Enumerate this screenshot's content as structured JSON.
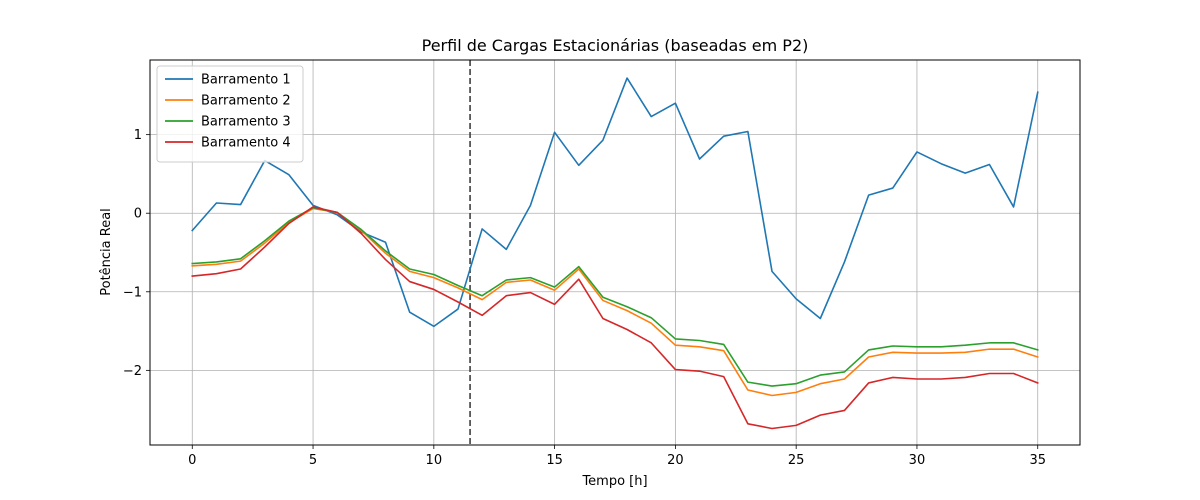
{
  "chart_data": {
    "type": "line",
    "title": "Perfil de Cargas Estacionárias (baseadas em P2)",
    "xlabel": "Tempo [h]",
    "ylabel": "Potência Real",
    "xlim": [
      -1.75,
      36.75
    ],
    "ylim": [
      -2.95,
      1.95
    ],
    "x_ticks": [
      0,
      5,
      10,
      15,
      20,
      25,
      30,
      35
    ],
    "y_ticks": [
      -2,
      -1,
      0,
      1
    ],
    "y_tick_labels": [
      "−2",
      "−1",
      "0",
      "1"
    ],
    "grid": true,
    "legend_position": "top-left",
    "vertical_line": {
      "x": 11.5,
      "style": "dashed",
      "color": "#404040"
    },
    "x": [
      0,
      1,
      2,
      3,
      4,
      5,
      6,
      7,
      8,
      9,
      10,
      11,
      12,
      13,
      14,
      15,
      16,
      17,
      18,
      19,
      20,
      21,
      22,
      23,
      24,
      25,
      26,
      27,
      28,
      29,
      30,
      31,
      32,
      33,
      34,
      35
    ],
    "series": [
      {
        "name": "Barramento 1",
        "color": "#1f77b4",
        "values": [
          -0.22,
          0.13,
          0.11,
          0.67,
          0.49,
          0.1,
          -0.02,
          -0.24,
          -0.37,
          -1.26,
          -1.44,
          -1.22,
          -0.2,
          -0.46,
          0.1,
          1.03,
          0.61,
          0.93,
          1.72,
          1.23,
          1.4,
          0.69,
          0.98,
          1.04,
          -0.74,
          -1.09,
          -1.34,
          -0.62,
          0.23,
          0.32,
          0.78,
          0.63,
          0.51,
          0.62,
          0.08,
          1.54
        ]
      },
      {
        "name": "Barramento 2",
        "color": "#ff7f0e",
        "values": [
          -0.67,
          -0.65,
          -0.61,
          -0.38,
          -0.12,
          0.06,
          0.01,
          -0.22,
          -0.51,
          -0.74,
          -0.82,
          -0.95,
          -1.1,
          -0.88,
          -0.85,
          -0.98,
          -0.71,
          -1.11,
          -1.24,
          -1.4,
          -1.68,
          -1.7,
          -1.75,
          -2.25,
          -2.32,
          -2.28,
          -2.17,
          -2.11,
          -1.83,
          -1.77,
          -1.78,
          -1.78,
          -1.77,
          -1.73,
          -1.73,
          -1.83
        ]
      },
      {
        "name": "Barramento 3",
        "color": "#2ca02c",
        "values": [
          -0.64,
          -0.62,
          -0.58,
          -0.35,
          -0.1,
          0.07,
          0.01,
          -0.21,
          -0.48,
          -0.71,
          -0.78,
          -0.92,
          -1.05,
          -0.85,
          -0.82,
          -0.94,
          -0.68,
          -1.07,
          -1.19,
          -1.33,
          -1.6,
          -1.62,
          -1.67,
          -2.15,
          -2.2,
          -2.17,
          -2.06,
          -2.02,
          -1.74,
          -1.69,
          -1.7,
          -1.7,
          -1.68,
          -1.65,
          -1.65,
          -1.74
        ]
      },
      {
        "name": "Barramento 4",
        "color": "#d62728",
        "values": [
          -0.8,
          -0.77,
          -0.71,
          -0.43,
          -0.13,
          0.08,
          0.01,
          -0.26,
          -0.59,
          -0.87,
          -0.97,
          -1.13,
          -1.3,
          -1.05,
          -1.01,
          -1.16,
          -0.84,
          -1.34,
          -1.48,
          -1.65,
          -1.99,
          -2.01,
          -2.08,
          -2.68,
          -2.74,
          -2.7,
          -2.57,
          -2.51,
          -2.16,
          -2.09,
          -2.11,
          -2.11,
          -2.09,
          -2.04,
          -2.04,
          -2.16
        ]
      }
    ]
  }
}
